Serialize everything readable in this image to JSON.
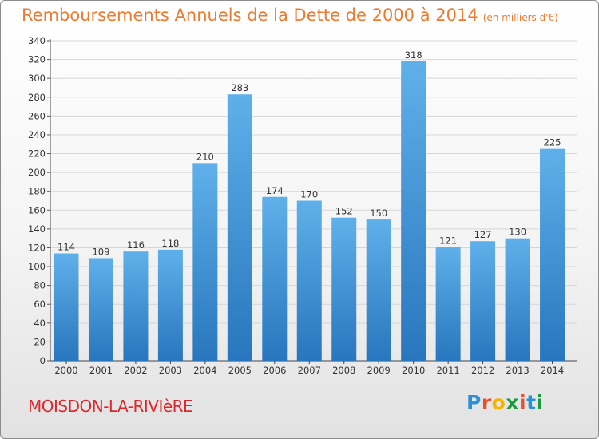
{
  "chart_data": {
    "type": "bar",
    "title": "Remboursements Annuels de la Dette de 2000 à 2014",
    "unit": "(en milliers d'€)",
    "categories": [
      "2000",
      "2001",
      "2002",
      "2003",
      "2004",
      "2005",
      "2006",
      "2007",
      "2008",
      "2009",
      "2010",
      "2011",
      "2012",
      "2013",
      "2014"
    ],
    "values": [
      114,
      109,
      116,
      118,
      210,
      283,
      174,
      170,
      152,
      150,
      318,
      121,
      127,
      130,
      225
    ],
    "ylim": [
      0,
      340
    ],
    "yticks": [
      0,
      20,
      40,
      60,
      80,
      100,
      120,
      140,
      160,
      180,
      200,
      220,
      240,
      260,
      280,
      300,
      320,
      340
    ],
    "xlabel": "",
    "ylabel": "",
    "grid": true,
    "bar_color": "#3a8fd4"
  },
  "footer": {
    "commune": "MOISDON-LA-RIVIèRE",
    "logo_letters": [
      "P",
      "r",
      "o",
      "x",
      "i",
      "t",
      "i"
    ],
    "logo_colors": [
      "#2e8fd6",
      "#e8502a",
      "#f4b400",
      "#1a9b3c",
      "#e8502a",
      "#2e8fd6",
      "#1a9b3c"
    ]
  }
}
